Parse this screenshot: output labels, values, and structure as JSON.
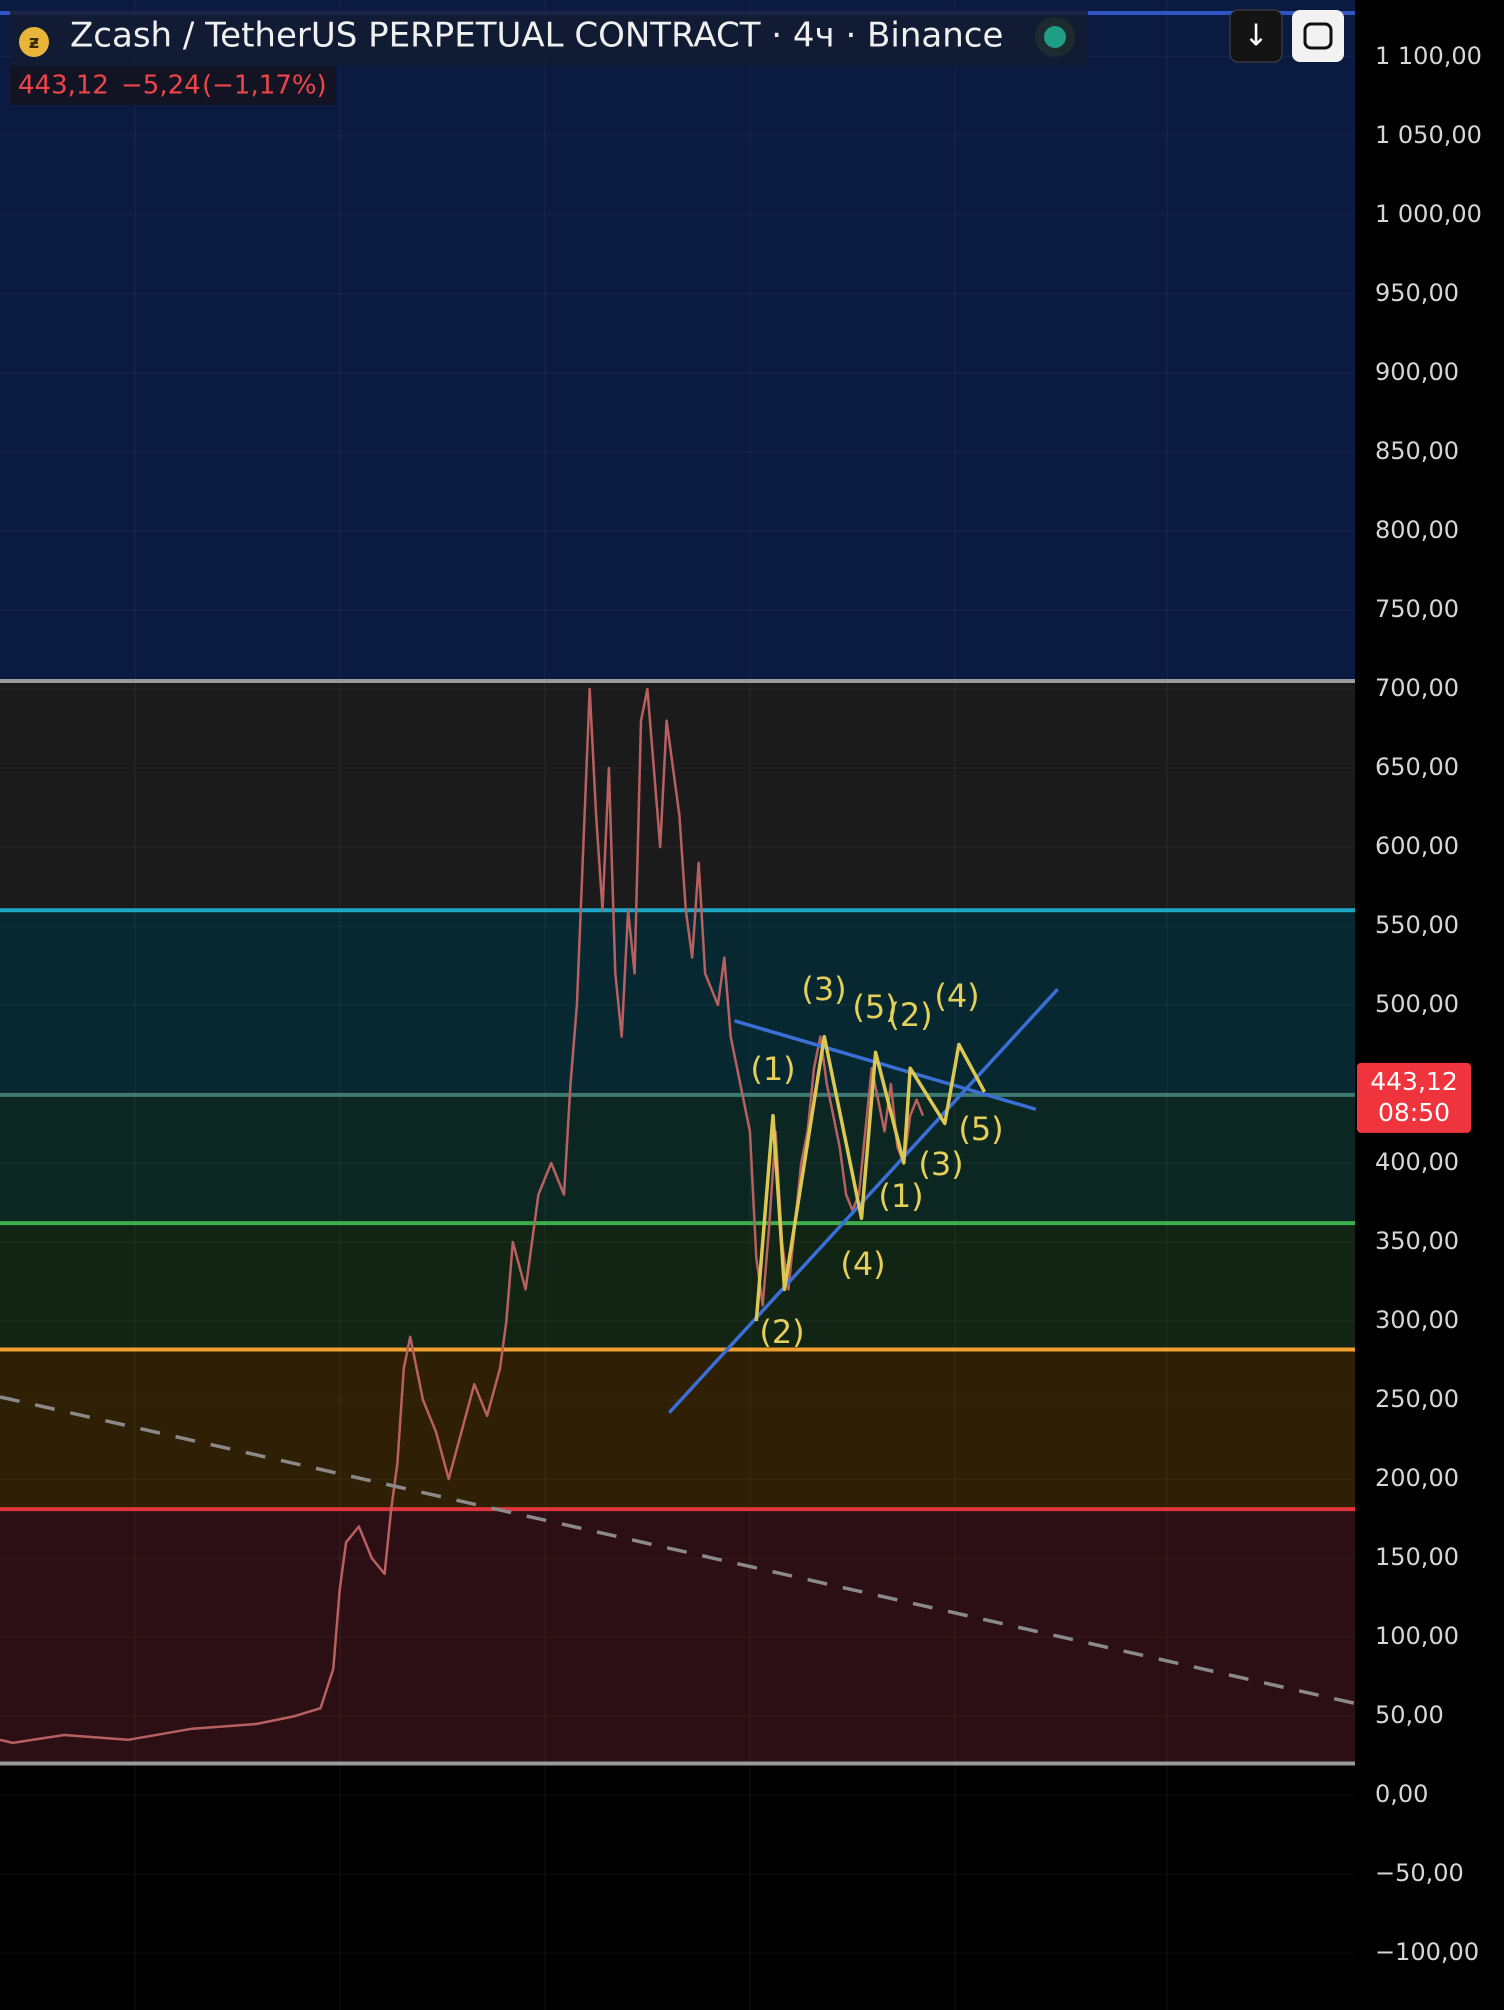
{
  "header": {
    "title": "Zcash / TetherUS PERPETUAL CONTRACT · 4ч · Binance",
    "price": "443,12",
    "change": "−5,24",
    "change_pct": "(−1,17%)",
    "badge_time": "08:50"
  },
  "chart_data": {
    "type": "line",
    "xlim": [
      0,
      1057
    ],
    "ylim": [
      -136,
      1136
    ],
    "grid": true,
    "yticks": [
      {
        "value": 1100,
        "label": "1 100,00"
      },
      {
        "value": 1050,
        "label": "1 050,00"
      },
      {
        "value": 1000,
        "label": "1 000,00"
      },
      {
        "value": 950,
        "label": "950,00"
      },
      {
        "value": 900,
        "label": "900,00"
      },
      {
        "value": 850,
        "label": "850,00"
      },
      {
        "value": 800,
        "label": "800,00"
      },
      {
        "value": 750,
        "label": "750,00"
      },
      {
        "value": 700,
        "label": "700,00"
      },
      {
        "value": 650,
        "label": "650,00"
      },
      {
        "value": 600,
        "label": "600,00"
      },
      {
        "value": 550,
        "label": "550,00"
      },
      {
        "value": 500,
        "label": "500,00"
      },
      {
        "value": 400,
        "label": "400,00"
      },
      {
        "value": 350,
        "label": "350,00"
      },
      {
        "value": 300,
        "label": "300,00"
      },
      {
        "value": 250,
        "label": "250,00"
      },
      {
        "value": 200,
        "label": "200,00"
      },
      {
        "value": 150,
        "label": "150,00"
      },
      {
        "value": 100,
        "label": "100,00"
      },
      {
        "value": 50,
        "label": "50,00"
      },
      {
        "value": 0,
        "label": "0,00"
      },
      {
        "value": -50,
        "label": "−50,00"
      },
      {
        "value": -100,
        "label": "−100,00"
      }
    ],
    "zones": [
      {
        "from": 705,
        "color": "#0b1a40"
      },
      {
        "from": 560,
        "to": 705,
        "color": "#1b1b1b"
      },
      {
        "from": 445,
        "to": 560,
        "color": "#072830"
      },
      {
        "from": 362,
        "to": 445,
        "color": "#0c2722"
      },
      {
        "from": 282,
        "to": 362,
        "color": "#122413"
      },
      {
        "from": 181,
        "to": 282,
        "color": "#2e1f05"
      },
      {
        "from": 20,
        "to": 181,
        "color": "#2b0f14"
      }
    ],
    "levels": [
      {
        "value": 705,
        "color": "#9a9a9a"
      },
      {
        "value": 560,
        "color": "#1ea7c9"
      },
      {
        "value": 443.12,
        "color": "#3d7a76"
      },
      {
        "value": 362,
        "color": "#3fae4a"
      },
      {
        "value": 282,
        "color": "#f0a030"
      },
      {
        "value": 181,
        "color": "#e0353d"
      },
      {
        "value": 20,
        "color": "#9a9a9a"
      }
    ],
    "series": [
      {
        "color": "#b86060",
        "x": [
          0,
          10,
          50,
          100,
          150,
          200,
          230,
          250,
          260,
          265,
          270,
          280,
          290,
          300,
          305,
          310,
          315,
          320,
          330,
          340,
          350,
          360,
          370,
          380,
          390,
          395,
          400,
          410,
          420,
          430,
          440,
          445,
          450,
          455,
          460,
          465,
          470,
          475,
          480,
          485,
          490,
          495,
          500,
          505,
          510,
          515,
          520,
          525,
          530,
          535,
          540,
          545,
          550,
          555,
          560,
          565,
          570,
          575,
          580,
          585,
          590,
          595,
          600,
          605,
          610,
          615,
          620,
          625,
          630,
          635,
          640,
          645,
          650,
          655,
          660,
          665,
          670,
          675,
          680,
          685,
          690,
          695,
          700,
          705,
          710,
          715,
          720
        ],
        "values": [
          35,
          33,
          38,
          35,
          42,
          45,
          50,
          55,
          80,
          130,
          160,
          170,
          150,
          140,
          180,
          210,
          270,
          290,
          250,
          230,
          200,
          230,
          260,
          240,
          270,
          300,
          350,
          320,
          380,
          400,
          380,
          450,
          500,
          600,
          700,
          620,
          560,
          650,
          520,
          480,
          560,
          520,
          680,
          700,
          650,
          600,
          680,
          650,
          620,
          560,
          530,
          590,
          520,
          510,
          500,
          530,
          480,
          460,
          440,
          420,
          340,
          310,
          360,
          420,
          350,
          320,
          360,
          400,
          420,
          460,
          480,
          450,
          430,
          410,
          380,
          370,
          380,
          420,
          460,
          440,
          420,
          450,
          410,
          400,
          430,
          440,
          430
        ]
      },
      {
        "color": "#8a8a8a",
        "dash": true,
        "x": [
          0,
          1057
        ],
        "values": [
          252,
          58
        ]
      },
      {
        "color": "#3b6fd8",
        "x": [
          522,
          825
        ],
        "values": [
          242,
          510
        ]
      },
      {
        "color": "#3b6fd8",
        "x": [
          573,
          808
        ],
        "values": [
          490,
          434
        ]
      },
      {
        "color": "#dcc752",
        "x": [
          590,
          603,
          612,
          643,
          672,
          683,
          705,
          710,
          737,
          748,
          768
        ],
        "values": [
          300,
          430,
          320,
          480,
          365,
          470,
          400,
          460,
          425,
          475,
          445
        ]
      }
    ],
    "wave_labels": [
      "(3)",
      "(5)",
      "(2)",
      "(4)",
      "(1)",
      "(5)",
      "(3)",
      "(1)",
      "(4)",
      "(2)"
    ]
  }
}
